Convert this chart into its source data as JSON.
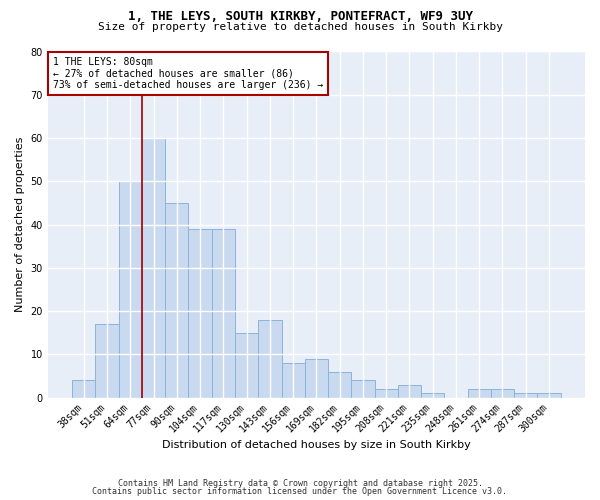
{
  "title_line1": "1, THE LEYS, SOUTH KIRKBY, PONTEFRACT, WF9 3UY",
  "title_line2": "Size of property relative to detached houses in South Kirkby",
  "xlabel": "Distribution of detached houses by size in South Kirkby",
  "ylabel": "Number of detached properties",
  "categories": [
    "38sqm",
    "51sqm",
    "64sqm",
    "77sqm",
    "90sqm",
    "104sqm",
    "117sqm",
    "130sqm",
    "143sqm",
    "156sqm",
    "169sqm",
    "182sqm",
    "195sqm",
    "208sqm",
    "221sqm",
    "235sqm",
    "248sqm",
    "261sqm",
    "274sqm",
    "287sqm",
    "300sqm"
  ],
  "values": [
    4,
    17,
    50,
    60,
    45,
    39,
    39,
    15,
    18,
    8,
    9,
    6,
    4,
    2,
    3,
    1,
    0,
    2,
    2,
    1,
    1
  ],
  "bar_color": "#c9d9f0",
  "bar_edge_color": "#8ab4d8",
  "annotation_text": "1 THE LEYS: 80sqm\n← 27% of detached houses are smaller (86)\n73% of semi-detached houses are larger (236) →",
  "annotation_box_color": "#ffffff",
  "annotation_box_edge": "#aa0000",
  "red_line_color": "#aa0000",
  "red_line_index": 3,
  "ylim": [
    0,
    80
  ],
  "yticks": [
    0,
    10,
    20,
    30,
    40,
    50,
    60,
    70,
    80
  ],
  "footer_line1": "Contains HM Land Registry data © Crown copyright and database right 2025.",
  "footer_line2": "Contains public sector information licensed under the Open Government Licence v3.0.",
  "bg_color": "#ffffff",
  "plot_bg_color": "#e8eef8",
  "grid_color": "#ffffff",
  "title_fontsize": 9,
  "subtitle_fontsize": 8,
  "ylabel_fontsize": 8,
  "xlabel_fontsize": 8,
  "tick_fontsize": 7,
  "annotation_fontsize": 7,
  "footer_fontsize": 6
}
